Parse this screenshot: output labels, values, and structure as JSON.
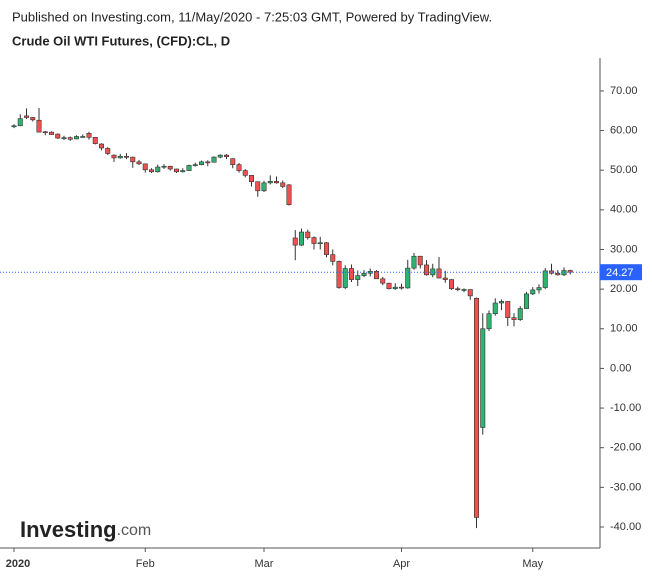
{
  "chart_data": {
    "type": "candlestick",
    "source_note": "Published on Investing.com, 11/May/2020 - 7:25:03 GMT, Powered by TradingView.",
    "title": "Crude Oil WTI Futures, (CFD):CL, D",
    "logo": "Investing",
    "logo_suffix": ".com",
    "up_color": "#2fb36f",
    "down_color": "#f0514f",
    "outline_color": "#333333",
    "price_line_color": "#2962ff",
    "last_price": 24.27,
    "ylim": [
      -45.3,
      78.3
    ],
    "yticks": [
      {
        "value": 70,
        "label": "70.00"
      },
      {
        "value": 60,
        "label": "60.00"
      },
      {
        "value": 50,
        "label": "50.00"
      },
      {
        "value": 40,
        "label": "40.00"
      },
      {
        "value": 30,
        "label": "30.00"
      },
      {
        "value": 20,
        "label": "20.00"
      },
      {
        "value": 10,
        "label": "10.00"
      },
      {
        "value": 0,
        "label": "0.00"
      },
      {
        "value": -10,
        "label": "-10.00"
      },
      {
        "value": -20,
        "label": "-20.00"
      },
      {
        "value": -30,
        "label": "-30.00"
      },
      {
        "value": -40,
        "label": "-40.00"
      }
    ],
    "categories": [
      "2020",
      null,
      null,
      null,
      null,
      null,
      null,
      null,
      null,
      null,
      null,
      null,
      null,
      null,
      null,
      null,
      null,
      null,
      null,
      null,
      null,
      "Feb",
      null,
      null,
      null,
      null,
      null,
      null,
      null,
      null,
      null,
      null,
      null,
      null,
      null,
      null,
      null,
      null,
      null,
      null,
      "Mar",
      null,
      null,
      null,
      null,
      null,
      null,
      null,
      null,
      null,
      null,
      null,
      null,
      null,
      null,
      null,
      null,
      null,
      null,
      null,
      null,
      null,
      "Apr",
      null,
      null,
      null,
      null,
      null,
      null,
      null,
      null,
      null,
      null,
      null,
      null,
      null,
      null,
      null,
      null,
      null,
      null,
      null,
      null,
      "May",
      null,
      null,
      null,
      null,
      null,
      null
    ],
    "open": [
      61.0,
      61.2,
      63.7,
      63.3,
      62.6,
      59.7,
      59.6,
      59.1,
      58.0,
      58.2,
      57.9,
      58.5,
      59.3,
      58.3,
      56.6,
      55.5,
      53.8,
      53.1,
      53.5,
      53.3,
      52.1,
      51.6,
      50.1,
      49.6,
      50.8,
      51.0,
      50.3,
      49.6,
      49.9,
      51.2,
      51.4,
      52.1,
      52.0,
      53.3,
      53.8,
      52.9,
      51.4,
      49.9,
      48.7,
      47.1,
      44.8,
      46.8,
      47.2,
      46.8,
      46.3,
      32.9,
      31.1,
      34.4,
      33.0,
      31.5,
      31.7,
      28.7,
      27.0,
      20.4,
      25.2,
      22.4,
      23.4,
      24.0,
      24.5,
      22.6,
      21.5,
      20.1,
      20.5,
      20.3,
      25.3,
      28.3,
      26.1,
      23.6,
      25.1,
      22.8,
      22.4,
      20.1,
      19.9,
      19.9,
      17.7,
      -14.9,
      10.0,
      13.8,
      16.5,
      16.9,
      12.8,
      12.3,
      15.1,
      18.8,
      19.8,
      20.4,
      24.6,
      24.0,
      23.6,
      24.7
    ],
    "high": [
      61.6,
      64.1,
      65.6,
      63.4,
      65.7,
      59.9,
      59.8,
      59.3,
      58.7,
      58.5,
      58.8,
      59.0,
      59.7,
      58.4,
      56.8,
      55.8,
      54.0,
      54.1,
      54.3,
      53.4,
      52.6,
      51.7,
      50.5,
      51.4,
      51.5,
      51.1,
      50.4,
      50.5,
      51.4,
      51.9,
      52.4,
      52.5,
      53.5,
      54.0,
      54.1,
      53.0,
      51.8,
      50.3,
      48.8,
      47.1,
      47.3,
      48.7,
      48.4,
      47.4,
      46.5,
      34.9,
      35.3,
      35.0,
      33.3,
      33.2,
      31.9,
      30.0,
      27.2,
      26.0,
      26.2,
      24.7,
      24.8,
      25.2,
      24.8,
      23.1,
      21.6,
      21.5,
      21.4,
      27.4,
      29.1,
      28.4,
      27.3,
      26.4,
      28.1,
      24.6,
      22.6,
      20.6,
      20.2,
      19.9,
      17.9,
      13.9,
      14.6,
      17.7,
      17.4,
      17.0,
      13.9,
      15.7,
      19.3,
      20.5,
      21.2,
      25.3,
      26.4,
      24.8,
      25.5,
      24.9
    ],
    "low": [
      60.6,
      61.1,
      62.9,
      62.3,
      59.7,
      58.8,
      58.9,
      57.9,
      57.6,
      57.4,
      57.8,
      58.2,
      57.7,
      56.5,
      55.0,
      53.8,
      52.1,
      52.9,
      52.8,
      50.6,
      51.3,
      49.4,
      49.3,
      49.4,
      50.3,
      49.9,
      49.3,
      49.4,
      49.9,
      50.9,
      51.2,
      51.0,
      52.0,
      53.0,
      52.8,
      50.5,
      49.4,
      48.2,
      45.9,
      43.3,
      44.5,
      46.4,
      46.6,
      45.5,
      41.1,
      27.3,
      30.9,
      32.5,
      30.0,
      30.0,
      28.0,
      26.0,
      20.1,
      20.0,
      21.8,
      20.8,
      23.0,
      23.2,
      22.6,
      21.0,
      19.9,
      19.8,
      19.9,
      20.1,
      24.9,
      25.2,
      23.4,
      23.0,
      22.7,
      21.6,
      19.8,
      19.5,
      19.2,
      17.3,
      -40.3,
      -16.7,
      9.4,
      13.3,
      14.7,
      10.7,
      10.6,
      12.0,
      15.0,
      18.5,
      18.9,
      20.0,
      23.7,
      23.4,
      23.3,
      23.7
    ],
    "close": [
      61.2,
      63.0,
      63.3,
      62.7,
      59.6,
      59.6,
      59.0,
      58.1,
      58.2,
      57.8,
      58.5,
      58.5,
      58.3,
      56.7,
      55.6,
      54.2,
      53.1,
      53.5,
      53.3,
      52.1,
      51.6,
      50.1,
      49.6,
      50.8,
      51.0,
      50.3,
      49.6,
      49.9,
      51.2,
      51.4,
      52.1,
      52.0,
      53.3,
      53.8,
      53.4,
      51.4,
      49.9,
      48.7,
      47.1,
      44.8,
      46.8,
      47.2,
      46.8,
      45.9,
      41.3,
      31.1,
      34.4,
      33.0,
      31.5,
      31.7,
      28.7,
      27.0,
      20.4,
      25.2,
      22.4,
      23.4,
      24.0,
      24.5,
      22.6,
      21.5,
      20.1,
      20.5,
      20.3,
      25.3,
      28.3,
      26.1,
      23.6,
      25.1,
      22.8,
      22.4,
      20.1,
      19.9,
      19.9,
      18.3,
      -37.6,
      10.0,
      13.8,
      16.5,
      16.9,
      12.8,
      12.3,
      15.1,
      18.8,
      19.8,
      20.4,
      24.6,
      24.0,
      23.6,
      24.7,
      24.27
    ]
  }
}
